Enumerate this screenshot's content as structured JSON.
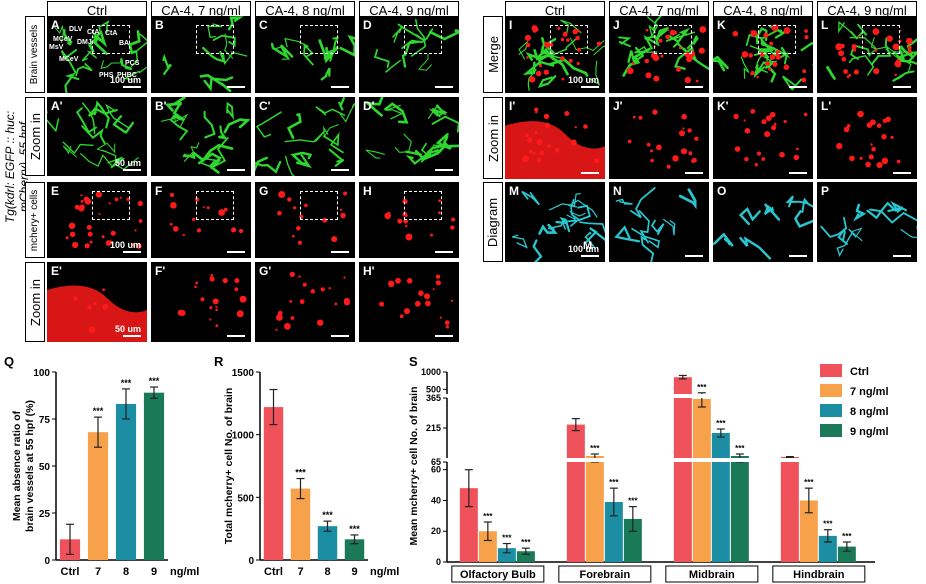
{
  "left_headers": [
    "Ctrl",
    "CA-4, 7 ng/ml",
    "CA-4, 8 ng/ml",
    "CA-4, 9 ng/ml"
  ],
  "right_headers": [
    "Ctrl",
    "CA-4, 7 ng/ml",
    "CA-4, 8 ng/ml",
    "CA-4, 9 ng/ml"
  ],
  "vertical_title": "Tg(kdrl: EGFP :: huc: mCherry), 55 hpf",
  "left_row_labels": [
    "Brain vessels",
    "Zoom in",
    "mchery+ cells",
    "Zoom in"
  ],
  "right_row_labels": [
    "Merge",
    "Zoom in",
    "Diagram"
  ],
  "left_panel_letters": [
    [
      "A",
      "B",
      "C",
      "D"
    ],
    [
      "A'",
      "B'",
      "C'",
      "D'"
    ],
    [
      "E",
      "F",
      "G",
      "H"
    ],
    [
      "E'",
      "F'",
      "G'",
      "H'"
    ]
  ],
  "right_panel_letters": [
    [
      "I",
      "J",
      "K",
      "L"
    ],
    [
      "I'",
      "J'",
      "K'",
      "L'"
    ],
    [
      "M",
      "N",
      "O",
      "P"
    ]
  ],
  "scale_labels": {
    "um100": "100 um",
    "um50": "50 um"
  },
  "anatomy_labels": [
    "DLV",
    "MCeV",
    "MsV",
    "CtA",
    "DMJ",
    "CtA",
    "BA",
    "MCeV",
    "PHS",
    "PHBC",
    "PCS"
  ],
  "diagram_marker": "M",
  "colors": {
    "vessel": "#2fd62f",
    "cell": "#ff1a1a",
    "diagram": "#29c6cf",
    "ctrl": "#f0525c",
    "n7": "#f7a24a",
    "n8": "#1b8ea3",
    "n9": "#1a7a57"
  },
  "chart_q": {
    "letter": "Q",
    "ylabel_line1": "Mean absence ratio of",
    "ylabel_line2": "brain vessels at 55 hpf (%)",
    "unit": "ng/ml",
    "sig": "***"
  },
  "chart_r": {
    "letter": "R",
    "ylabel": "Total mcherry+ cell No. of brain",
    "unit": "ng/ml",
    "sig": "***"
  },
  "chart_s": {
    "letter": "S",
    "ylabel": "Mean  mcherry+ cell No. of brain",
    "sig": "***",
    "legend": [
      "Ctrl",
      "7  ng/ml",
      "8  ng/ml",
      "9  ng/ml"
    ]
  },
  "chart_data": [
    {
      "type": "bar",
      "title": "",
      "categories": [
        "Ctrl",
        "7",
        "8",
        "9"
      ],
      "values": [
        11,
        68,
        83,
        89
      ],
      "errors": [
        8,
        8,
        8,
        3
      ],
      "significance": [
        "",
        "***",
        "***",
        "***"
      ],
      "xlabel": "ng/ml",
      "ylabel": "Mean absence ratio of brain vessels at 55 hpf (%)",
      "ylim": [
        0,
        100
      ],
      "yticks": [
        0,
        25,
        50,
        75,
        100
      ]
    },
    {
      "type": "bar",
      "title": "",
      "categories": [
        "Ctrl",
        "7",
        "8",
        "9"
      ],
      "values": [
        1220,
        570,
        270,
        165
      ],
      "errors": [
        140,
        80,
        40,
        35
      ],
      "significance": [
        "",
        "***",
        "***",
        "***"
      ],
      "xlabel": "ng/ml",
      "ylabel": "Total mcherry+ cell No. of brain",
      "ylim": [
        0,
        1500
      ],
      "yticks": [
        0,
        500,
        1000,
        1500
      ]
    },
    {
      "type": "bar",
      "title": "",
      "categories": [
        "Olfactory Bulb",
        "Forebrain",
        "Midbrain",
        "Hindbrain"
      ],
      "series": [
        {
          "name": "Ctrl",
          "values": [
            48,
            232,
            850,
            70
          ],
          "errors": [
            12,
            30,
            50,
            2
          ]
        },
        {
          "name": "7  ng/ml",
          "values": [
            20,
            75,
            360,
            40
          ],
          "errors": [
            6,
            10,
            40,
            8
          ]
        },
        {
          "name": "8  ng/ml",
          "values": [
            9,
            39,
            190,
            17
          ],
          "errors": [
            3,
            9,
            20,
            4
          ]
        },
        {
          "name": "9  ng/ml",
          "values": [
            7,
            28,
            75,
            10
          ],
          "errors": [
            2,
            8,
            10,
            3
          ]
        }
      ],
      "significance": [
        "",
        "***",
        "***",
        "***"
      ],
      "xlabel": "",
      "ylabel": "Mean  mcherry+ cell No. of brain",
      "broken_axis": true,
      "yticks": [
        0,
        20,
        40,
        60,
        65,
        215,
        365,
        500,
        1000
      ],
      "legend_position": "top-right"
    }
  ]
}
